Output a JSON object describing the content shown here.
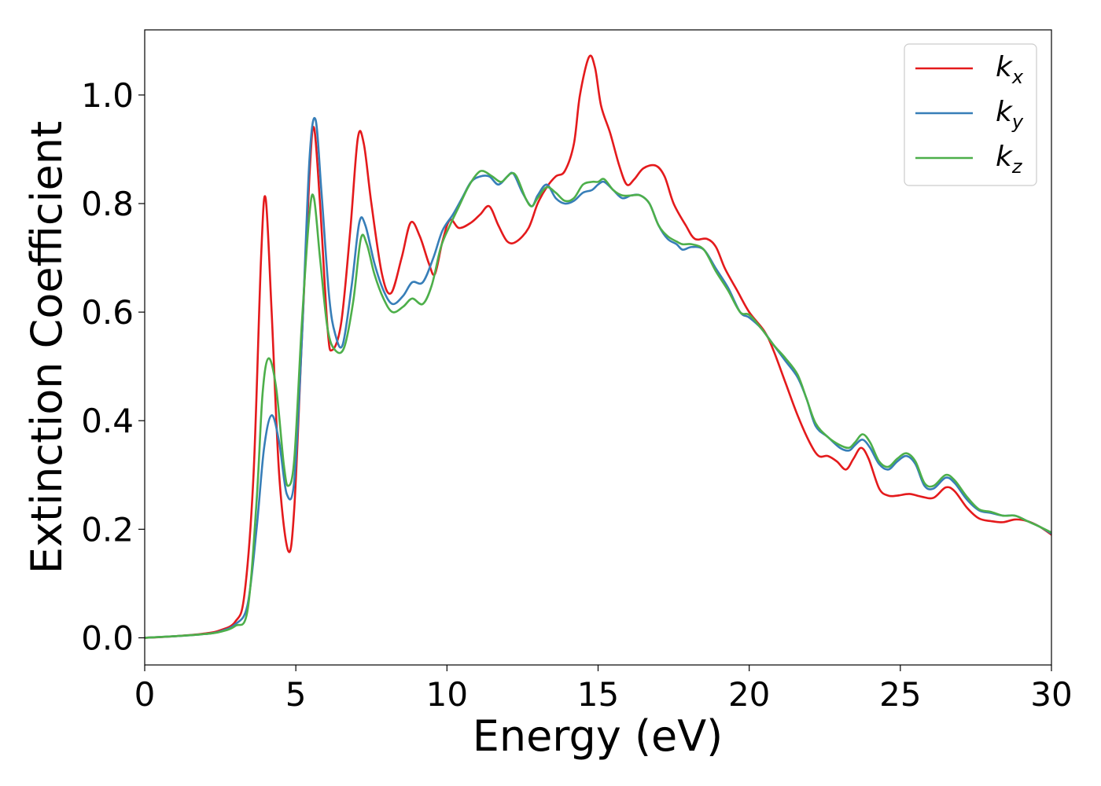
{
  "chart_data": {
    "type": "line",
    "title": "",
    "xlabel": "Energy (eV)",
    "ylabel": "Extinction Coefficient",
    "xlim": [
      0,
      30
    ],
    "ylim": [
      -0.05,
      1.12
    ],
    "xticks": [
      0,
      5,
      10,
      15,
      20,
      25,
      30
    ],
    "yticks": [
      0.0,
      0.2,
      0.4,
      0.6,
      0.8,
      1.0
    ],
    "xtick_labels": [
      "0",
      "5",
      "10",
      "15",
      "20",
      "25",
      "30"
    ],
    "ytick_labels": [
      "0.0",
      "0.2",
      "0.4",
      "0.6",
      "0.8",
      "1.0"
    ],
    "grid": false,
    "legend_position": "top-right",
    "series": [
      {
        "name": "k_x",
        "base": "k",
        "sub": "x",
        "color": "#e41a1c",
        "points": [
          [
            0,
            0
          ],
          [
            1,
            0.003
          ],
          [
            2,
            0.008
          ],
          [
            2.5,
            0.014
          ],
          [
            3,
            0.03
          ],
          [
            3.3,
            0.08
          ],
          [
            3.6,
            0.3
          ],
          [
            3.85,
            0.7
          ],
          [
            4.0,
            0.81
          ],
          [
            4.2,
            0.6
          ],
          [
            4.45,
            0.3
          ],
          [
            4.75,
            0.16
          ],
          [
            4.95,
            0.24
          ],
          [
            5.2,
            0.55
          ],
          [
            5.45,
            0.85
          ],
          [
            5.6,
            0.94
          ],
          [
            5.8,
            0.8
          ],
          [
            6.05,
            0.57
          ],
          [
            6.2,
            0.53
          ],
          [
            6.5,
            0.58
          ],
          [
            6.8,
            0.75
          ],
          [
            7.05,
            0.92
          ],
          [
            7.25,
            0.91
          ],
          [
            7.5,
            0.8
          ],
          [
            7.85,
            0.67
          ],
          [
            8.15,
            0.635
          ],
          [
            8.5,
            0.7
          ],
          [
            8.8,
            0.765
          ],
          [
            9.1,
            0.74
          ],
          [
            9.4,
            0.69
          ],
          [
            9.6,
            0.67
          ],
          [
            9.85,
            0.73
          ],
          [
            10.1,
            0.77
          ],
          [
            10.4,
            0.755
          ],
          [
            10.8,
            0.765
          ],
          [
            11.1,
            0.78
          ],
          [
            11.4,
            0.795
          ],
          [
            11.7,
            0.76
          ],
          [
            12.0,
            0.73
          ],
          [
            12.3,
            0.73
          ],
          [
            12.7,
            0.755
          ],
          [
            13.0,
            0.8
          ],
          [
            13.3,
            0.83
          ],
          [
            13.6,
            0.85
          ],
          [
            13.9,
            0.86
          ],
          [
            14.2,
            0.91
          ],
          [
            14.4,
            1.0
          ],
          [
            14.7,
            1.07
          ],
          [
            14.9,
            1.05
          ],
          [
            15.1,
            0.98
          ],
          [
            15.4,
            0.93
          ],
          [
            15.7,
            0.87
          ],
          [
            15.95,
            0.835
          ],
          [
            16.2,
            0.845
          ],
          [
            16.5,
            0.865
          ],
          [
            16.9,
            0.87
          ],
          [
            17.2,
            0.85
          ],
          [
            17.5,
            0.8
          ],
          [
            17.9,
            0.76
          ],
          [
            18.2,
            0.735
          ],
          [
            18.6,
            0.735
          ],
          [
            18.9,
            0.72
          ],
          [
            19.2,
            0.68
          ],
          [
            19.6,
            0.64
          ],
          [
            20.0,
            0.6
          ],
          [
            20.5,
            0.565
          ],
          [
            20.8,
            0.53
          ],
          [
            21.2,
            0.47
          ],
          [
            21.6,
            0.41
          ],
          [
            22.0,
            0.36
          ],
          [
            22.3,
            0.335
          ],
          [
            22.6,
            0.335
          ],
          [
            22.9,
            0.325
          ],
          [
            23.2,
            0.31
          ],
          [
            23.45,
            0.33
          ],
          [
            23.7,
            0.35
          ],
          [
            23.95,
            0.33
          ],
          [
            24.3,
            0.275
          ],
          [
            24.6,
            0.262
          ],
          [
            24.9,
            0.262
          ],
          [
            25.3,
            0.265
          ],
          [
            25.7,
            0.26
          ],
          [
            26.1,
            0.258
          ],
          [
            26.5,
            0.277
          ],
          [
            26.8,
            0.27
          ],
          [
            27.2,
            0.24
          ],
          [
            27.6,
            0.22
          ],
          [
            28.0,
            0.215
          ],
          [
            28.4,
            0.213
          ],
          [
            28.8,
            0.218
          ],
          [
            29.2,
            0.215
          ],
          [
            29.6,
            0.205
          ],
          [
            30,
            0.19
          ]
        ]
      },
      {
        "name": "k_y",
        "base": "k",
        "sub": "y",
        "color": "#377eb8",
        "points": [
          [
            0,
            0
          ],
          [
            1,
            0.003
          ],
          [
            2,
            0.007
          ],
          [
            2.5,
            0.012
          ],
          [
            3,
            0.025
          ],
          [
            3.4,
            0.06
          ],
          [
            3.7,
            0.2
          ],
          [
            3.95,
            0.35
          ],
          [
            4.2,
            0.41
          ],
          [
            4.45,
            0.36
          ],
          [
            4.7,
            0.265
          ],
          [
            4.95,
            0.29
          ],
          [
            5.2,
            0.55
          ],
          [
            5.45,
            0.88
          ],
          [
            5.65,
            0.955
          ],
          [
            5.85,
            0.82
          ],
          [
            6.1,
            0.63
          ],
          [
            6.3,
            0.56
          ],
          [
            6.55,
            0.54
          ],
          [
            6.85,
            0.65
          ],
          [
            7.1,
            0.765
          ],
          [
            7.3,
            0.76
          ],
          [
            7.6,
            0.69
          ],
          [
            7.9,
            0.64
          ],
          [
            8.2,
            0.615
          ],
          [
            8.55,
            0.63
          ],
          [
            8.85,
            0.655
          ],
          [
            9.2,
            0.655
          ],
          [
            9.55,
            0.7
          ],
          [
            9.85,
            0.75
          ],
          [
            10.2,
            0.78
          ],
          [
            10.5,
            0.81
          ],
          [
            10.8,
            0.84
          ],
          [
            11.1,
            0.85
          ],
          [
            11.4,
            0.85
          ],
          [
            11.7,
            0.835
          ],
          [
            12.0,
            0.85
          ],
          [
            12.2,
            0.855
          ],
          [
            12.5,
            0.82
          ],
          [
            12.8,
            0.795
          ],
          [
            13.0,
            0.815
          ],
          [
            13.3,
            0.835
          ],
          [
            13.6,
            0.81
          ],
          [
            13.9,
            0.8
          ],
          [
            14.2,
            0.805
          ],
          [
            14.5,
            0.82
          ],
          [
            14.8,
            0.825
          ],
          [
            15.0,
            0.835
          ],
          [
            15.2,
            0.84
          ],
          [
            15.5,
            0.825
          ],
          [
            15.8,
            0.81
          ],
          [
            16.1,
            0.815
          ],
          [
            16.4,
            0.815
          ],
          [
            16.7,
            0.8
          ],
          [
            17.0,
            0.76
          ],
          [
            17.3,
            0.735
          ],
          [
            17.6,
            0.725
          ],
          [
            17.8,
            0.715
          ],
          [
            18.1,
            0.72
          ],
          [
            18.5,
            0.715
          ],
          [
            18.9,
            0.68
          ],
          [
            19.3,
            0.645
          ],
          [
            19.7,
            0.6
          ],
          [
            20.0,
            0.59
          ],
          [
            20.4,
            0.57
          ],
          [
            20.8,
            0.54
          ],
          [
            21.2,
            0.51
          ],
          [
            21.6,
            0.48
          ],
          [
            21.9,
            0.44
          ],
          [
            22.2,
            0.39
          ],
          [
            22.6,
            0.37
          ],
          [
            23.0,
            0.35
          ],
          [
            23.3,
            0.345
          ],
          [
            23.5,
            0.355
          ],
          [
            23.75,
            0.365
          ],
          [
            24.0,
            0.35
          ],
          [
            24.3,
            0.32
          ],
          [
            24.6,
            0.31
          ],
          [
            24.9,
            0.325
          ],
          [
            25.2,
            0.335
          ],
          [
            25.5,
            0.32
          ],
          [
            25.8,
            0.28
          ],
          [
            26.1,
            0.275
          ],
          [
            26.5,
            0.295
          ],
          [
            26.8,
            0.285
          ],
          [
            27.2,
            0.255
          ],
          [
            27.6,
            0.235
          ],
          [
            28.0,
            0.23
          ],
          [
            28.4,
            0.225
          ],
          [
            28.8,
            0.225
          ],
          [
            29.2,
            0.215
          ],
          [
            29.6,
            0.205
          ],
          [
            30,
            0.192
          ]
        ]
      },
      {
        "name": "k_z",
        "base": "k",
        "sub": "z",
        "color": "#4daf4a",
        "points": [
          [
            0,
            0
          ],
          [
            1,
            0.003
          ],
          [
            2,
            0.007
          ],
          [
            2.5,
            0.011
          ],
          [
            3,
            0.022
          ],
          [
            3.4,
            0.05
          ],
          [
            3.7,
            0.25
          ],
          [
            3.9,
            0.45
          ],
          [
            4.1,
            0.515
          ],
          [
            4.35,
            0.46
          ],
          [
            4.6,
            0.32
          ],
          [
            4.75,
            0.28
          ],
          [
            4.95,
            0.33
          ],
          [
            5.2,
            0.58
          ],
          [
            5.45,
            0.78
          ],
          [
            5.6,
            0.81
          ],
          [
            5.8,
            0.7
          ],
          [
            6.05,
            0.57
          ],
          [
            6.3,
            0.53
          ],
          [
            6.6,
            0.535
          ],
          [
            6.9,
            0.62
          ],
          [
            7.15,
            0.735
          ],
          [
            7.35,
            0.725
          ],
          [
            7.6,
            0.67
          ],
          [
            7.9,
            0.625
          ],
          [
            8.2,
            0.6
          ],
          [
            8.55,
            0.61
          ],
          [
            8.85,
            0.625
          ],
          [
            9.2,
            0.615
          ],
          [
            9.5,
            0.65
          ],
          [
            9.8,
            0.72
          ],
          [
            10.1,
            0.76
          ],
          [
            10.4,
            0.795
          ],
          [
            10.7,
            0.83
          ],
          [
            11.0,
            0.855
          ],
          [
            11.2,
            0.86
          ],
          [
            11.5,
            0.85
          ],
          [
            11.8,
            0.84
          ],
          [
            12.1,
            0.855
          ],
          [
            12.3,
            0.85
          ],
          [
            12.6,
            0.81
          ],
          [
            12.8,
            0.795
          ],
          [
            13.0,
            0.81
          ],
          [
            13.3,
            0.83
          ],
          [
            13.6,
            0.82
          ],
          [
            13.9,
            0.805
          ],
          [
            14.2,
            0.81
          ],
          [
            14.5,
            0.835
          ],
          [
            14.8,
            0.84
          ],
          [
            15.0,
            0.84
          ],
          [
            15.2,
            0.845
          ],
          [
            15.5,
            0.825
          ],
          [
            15.8,
            0.815
          ],
          [
            16.1,
            0.815
          ],
          [
            16.4,
            0.815
          ],
          [
            16.7,
            0.8
          ],
          [
            17.0,
            0.76
          ],
          [
            17.3,
            0.74
          ],
          [
            17.6,
            0.73
          ],
          [
            17.8,
            0.725
          ],
          [
            18.1,
            0.725
          ],
          [
            18.5,
            0.715
          ],
          [
            18.9,
            0.675
          ],
          [
            19.3,
            0.64
          ],
          [
            19.7,
            0.6
          ],
          [
            20.0,
            0.595
          ],
          [
            20.4,
            0.57
          ],
          [
            20.8,
            0.54
          ],
          [
            21.2,
            0.515
          ],
          [
            21.6,
            0.485
          ],
          [
            21.9,
            0.44
          ],
          [
            22.2,
            0.395
          ],
          [
            22.6,
            0.37
          ],
          [
            23.0,
            0.355
          ],
          [
            23.3,
            0.35
          ],
          [
            23.5,
            0.36
          ],
          [
            23.75,
            0.375
          ],
          [
            24.0,
            0.36
          ],
          [
            24.3,
            0.325
          ],
          [
            24.6,
            0.315
          ],
          [
            24.9,
            0.33
          ],
          [
            25.2,
            0.34
          ],
          [
            25.5,
            0.325
          ],
          [
            25.8,
            0.285
          ],
          [
            26.1,
            0.28
          ],
          [
            26.5,
            0.3
          ],
          [
            26.8,
            0.29
          ],
          [
            27.2,
            0.26
          ],
          [
            27.6,
            0.237
          ],
          [
            28.0,
            0.232
          ],
          [
            28.4,
            0.225
          ],
          [
            28.8,
            0.225
          ],
          [
            29.2,
            0.215
          ],
          [
            29.6,
            0.205
          ],
          [
            30,
            0.194
          ]
        ]
      }
    ]
  }
}
